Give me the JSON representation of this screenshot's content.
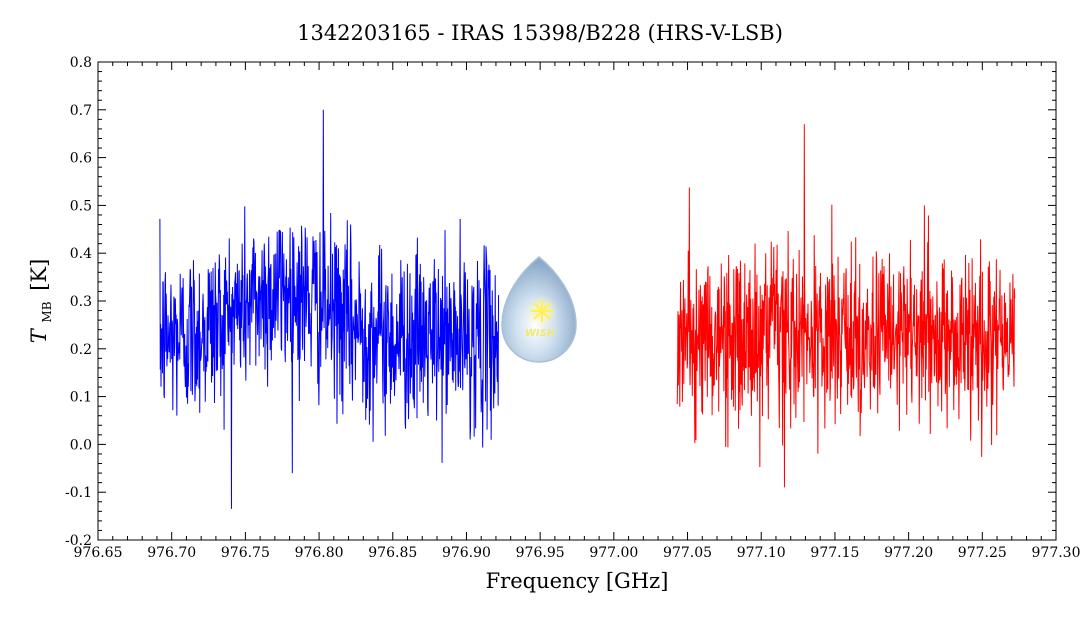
{
  "chart_data": {
    "type": "line",
    "title": "1342203165 - IRAS 15398/B228 (HRS-V-LSB)",
    "xlabel": "Frequency [GHz]",
    "ylabel_main": "T",
    "ylabel_sub": "MB",
    "ylabel_unit": "[K]",
    "xlim": [
      976.65,
      977.3
    ],
    "ylim": [
      -0.2,
      0.8
    ],
    "xticks": [
      "976.65",
      "976.70",
      "976.75",
      "976.80",
      "976.85",
      "976.90",
      "976.95",
      "977.00",
      "977.05",
      "977.10",
      "977.15",
      "977.20",
      "977.25",
      "977.30"
    ],
    "yticks": [
      "-0.2",
      "-0.1",
      "0.0",
      "0.1",
      "0.2",
      "0.3",
      "0.4",
      "0.5",
      "0.6",
      "0.7",
      "0.8"
    ],
    "grid": false,
    "series": [
      {
        "color": "#0000ff",
        "x_range": [
          976.692,
          976.922
        ],
        "points": 920,
        "baseline": 0.22,
        "noise_sd": 0.09,
        "emission": {
          "center": 976.775,
          "sigma": 0.03,
          "peak": 0.1
        },
        "y_extremes": [
          -0.135,
          0.7
        ]
      },
      {
        "color": "#ff0000",
        "x_range": [
          977.043,
          977.272
        ],
        "points": 920,
        "baseline": 0.22,
        "noise_sd": 0.09,
        "y_extremes": [
          -0.09,
          0.67
        ]
      }
    ],
    "logo_text": "WISH"
  }
}
